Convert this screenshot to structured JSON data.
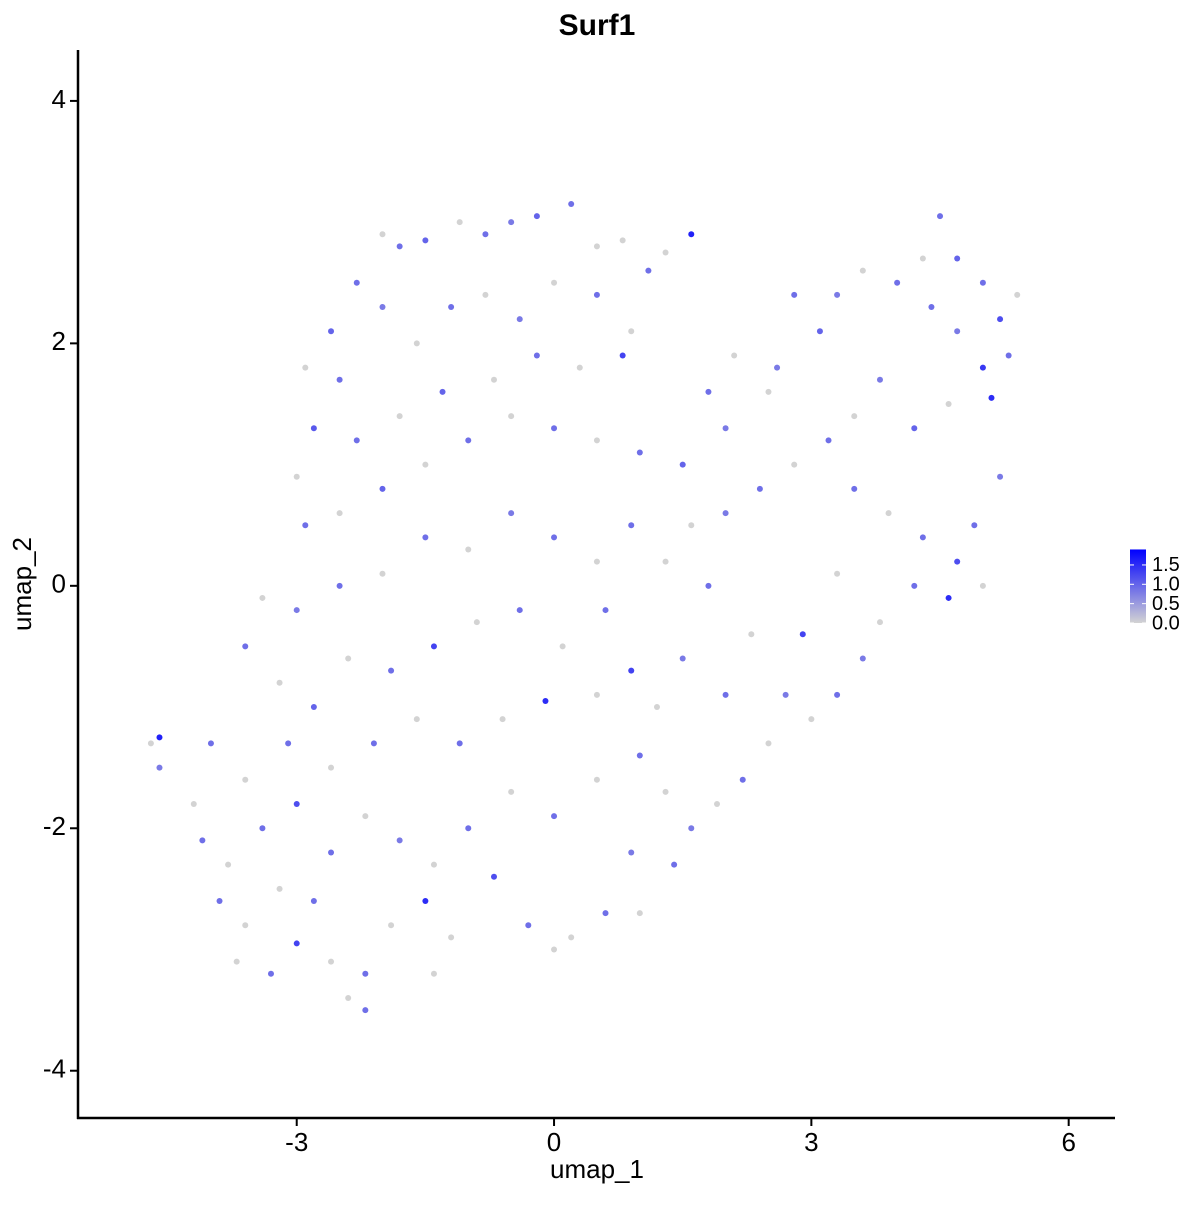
{
  "chart_data": {
    "type": "scatter",
    "title": "Surf1",
    "xlabel": "umap_1",
    "ylabel": "umap_2",
    "xlim": [
      -5.55,
      6.54
    ],
    "ylim": [
      -4.39,
      4.42
    ],
    "xticks": [
      -3,
      0,
      3,
      6
    ],
    "yticks": [
      -4,
      -2,
      0,
      2,
      4
    ],
    "colorscale": [
      "#d3d3d3",
      "#0000ff"
    ],
    "clim": [
      0,
      1.9
    ],
    "colorbar_ticks": [
      {
        "value": 0,
        "label": "0.0"
      },
      0.5,
      {
        "value": 1,
        "label": "1.0"
      },
      1.5
    ],
    "x": [
      -2.0,
      -1.8,
      -1.5,
      -1.1,
      -0.8,
      -0.5,
      -0.2,
      0.2,
      0.5,
      0.8,
      1.1,
      1.6,
      1.3,
      -2.3,
      -2.6,
      -2.9,
      -2.5,
      -2.0,
      -1.6,
      -1.2,
      -0.8,
      -0.4,
      0.0,
      0.5,
      0.9,
      0.8,
      0.3,
      -0.2,
      -0.7,
      -1.3,
      -1.8,
      -2.3,
      -2.8,
      -3.0,
      -2.9,
      -2.5,
      -2.0,
      -1.5,
      -1.0,
      -0.5,
      0.0,
      0.5,
      1.0,
      1.5,
      2.0,
      2.5,
      2.1,
      1.8,
      2.6,
      3.1,
      2.8,
      3.3,
      3.6,
      4.0,
      4.3,
      4.5,
      4.7,
      5.0,
      5.2,
      5.4,
      5.3,
      5.0,
      5.1,
      4.7,
      4.4,
      4.6,
      4.2,
      3.8,
      3.5,
      3.2,
      2.8,
      2.4,
      2.0,
      1.6,
      3.5,
      3.9,
      4.3,
      4.7,
      4.9,
      5.2,
      5.0,
      4.6,
      4.2,
      3.8,
      3.6,
      3.3,
      3.0,
      2.7,
      2.9,
      3.3,
      2.5,
      2.2,
      1.9,
      1.6,
      1.3,
      1.0,
      1.2,
      1.5,
      2.0,
      2.3,
      1.8,
      1.3,
      0.9,
      0.5,
      0.0,
      -0.5,
      -1.0,
      -1.5,
      -2.0,
      -2.5,
      -3.0,
      -3.4,
      -3.6,
      -3.2,
      -2.8,
      -2.4,
      -1.9,
      -1.4,
      -0.9,
      -0.4,
      0.1,
      0.6,
      0.9,
      0.5,
      -0.1,
      -0.6,
      -1.1,
      -1.6,
      -2.1,
      -2.6,
      -3.1,
      -3.6,
      -4.0,
      -4.6,
      -4.7,
      -4.6,
      -4.2,
      -4.1,
      -3.8,
      -3.4,
      -3.0,
      -2.6,
      -2.2,
      -1.8,
      -1.4,
      -1.0,
      -0.5,
      0.0,
      0.5,
      0.9,
      0.6,
      0.2,
      -0.3,
      -0.7,
      -1.2,
      -1.5,
      -1.9,
      -2.2,
      -2.4,
      -2.2,
      -2.6,
      -3.0,
      -3.3,
      -3.6,
      -3.9,
      -3.7,
      -3.2,
      -2.8,
      -1.4,
      0.0,
      1.0,
      1.4
    ],
    "y": [
      2.9,
      2.8,
      2.85,
      3.0,
      2.9,
      3.0,
      3.05,
      3.15,
      2.8,
      2.85,
      2.6,
      2.9,
      2.75,
      2.5,
      2.1,
      1.8,
      1.7,
      2.3,
      2.0,
      2.3,
      2.4,
      2.2,
      2.5,
      2.4,
      2.1,
      1.9,
      1.8,
      1.9,
      1.7,
      1.6,
      1.4,
      1.2,
      1.3,
      0.9,
      0.5,
      0.6,
      0.8,
      1.0,
      1.2,
      1.4,
      1.3,
      1.2,
      1.1,
      1.0,
      1.3,
      1.6,
      1.9,
      1.6,
      1.8,
      2.1,
      2.4,
      2.4,
      2.6,
      2.5,
      2.7,
      3.05,
      2.7,
      2.5,
      2.2,
      2.4,
      1.9,
      1.8,
      1.55,
      2.1,
      2.3,
      1.5,
      1.3,
      1.7,
      1.4,
      1.2,
      1.0,
      0.8,
      0.6,
      0.5,
      0.8,
      0.6,
      0.4,
      0.2,
      0.5,
      0.9,
      0.0,
      -0.1,
      0.0,
      -0.3,
      -0.6,
      -0.9,
      -1.1,
      -0.9,
      -0.4,
      0.1,
      -1.3,
      -1.6,
      -1.8,
      -2.0,
      -1.7,
      -1.4,
      -1.0,
      -0.6,
      -0.9,
      -0.4,
      0.0,
      0.2,
      0.5,
      0.2,
      0.4,
      0.6,
      0.3,
      0.4,
      0.1,
      0.0,
      -0.2,
      -0.1,
      -0.5,
      -0.8,
      -1.0,
      -0.6,
      -0.7,
      -0.5,
      -0.3,
      -0.2,
      -0.5,
      -0.2,
      -0.7,
      -0.9,
      -0.95,
      -1.1,
      -1.3,
      -1.1,
      -1.3,
      -1.5,
      -1.3,
      -1.6,
      -1.3,
      -1.25,
      -1.3,
      -1.5,
      -1.8,
      -2.1,
      -2.3,
      -2.0,
      -1.8,
      -2.2,
      -1.9,
      -2.1,
      -2.3,
      -2.0,
      -1.7,
      -1.9,
      -1.6,
      -2.2,
      -2.7,
      -2.9,
      -2.8,
      -2.4,
      -2.9,
      -2.6,
      -2.8,
      -3.2,
      -3.4,
      -3.5,
      -3.1,
      -2.95,
      -3.2,
      -2.8,
      -2.6,
      -3.1,
      -2.5,
      -2.6,
      -3.2,
      -3.0,
      -2.7,
      -2.3
    ],
    "values": [
      0,
      0.9,
      1.0,
      0,
      0.9,
      0.8,
      1.0,
      0.9,
      0,
      0,
      0.9,
      1.6,
      0,
      0.9,
      1.0,
      0,
      0.9,
      0.8,
      0,
      0.9,
      0,
      0.8,
      0,
      0.9,
      0,
      1.3,
      0,
      0.9,
      0,
      1.0,
      0,
      0.9,
      1.1,
      0,
      0.9,
      0,
      1.0,
      0,
      0.9,
      0,
      0.9,
      0,
      0.9,
      1.0,
      0.8,
      0,
      0,
      0.9,
      0.8,
      1.0,
      0.9,
      0.8,
      0,
      0.9,
      0,
      0.9,
      1.0,
      0.9,
      1.2,
      0,
      0.9,
      1.4,
      1.5,
      0.8,
      0.9,
      0,
      1.0,
      0.8,
      0,
      0.9,
      0,
      0.9,
      0.8,
      0,
      0.9,
      0,
      0.9,
      1.2,
      0.9,
      0.8,
      0,
      1.5,
      0.9,
      0,
      0.8,
      0.9,
      0,
      0.8,
      1.3,
      0,
      0,
      0.9,
      0,
      0.8,
      0,
      0.9,
      0,
      0.8,
      0.9,
      0,
      0.9,
      0,
      0.9,
      0,
      0.9,
      0.8,
      0,
      0.9,
      0,
      0.9,
      0.8,
      0,
      0.9,
      0,
      1.0,
      0,
      0.9,
      1.3,
      0,
      0.9,
      0,
      0.9,
      1.3,
      0,
      1.5,
      0,
      0.9,
      0,
      0.9,
      0,
      0.9,
      0,
      0.9,
      1.6,
      0,
      0.8,
      0,
      0.9,
      0,
      0.9,
      1.2,
      0.9,
      0,
      0.8,
      0,
      0.9,
      0,
      0.9,
      0,
      0.8,
      0.9,
      0,
      0.9,
      1.2,
      0,
      1.5,
      0,
      0.9,
      0,
      0.9,
      0,
      1.3,
      0.9,
      0,
      0.9,
      0,
      0,
      0.9,
      0,
      0,
      0,
      0.9
    ]
  }
}
